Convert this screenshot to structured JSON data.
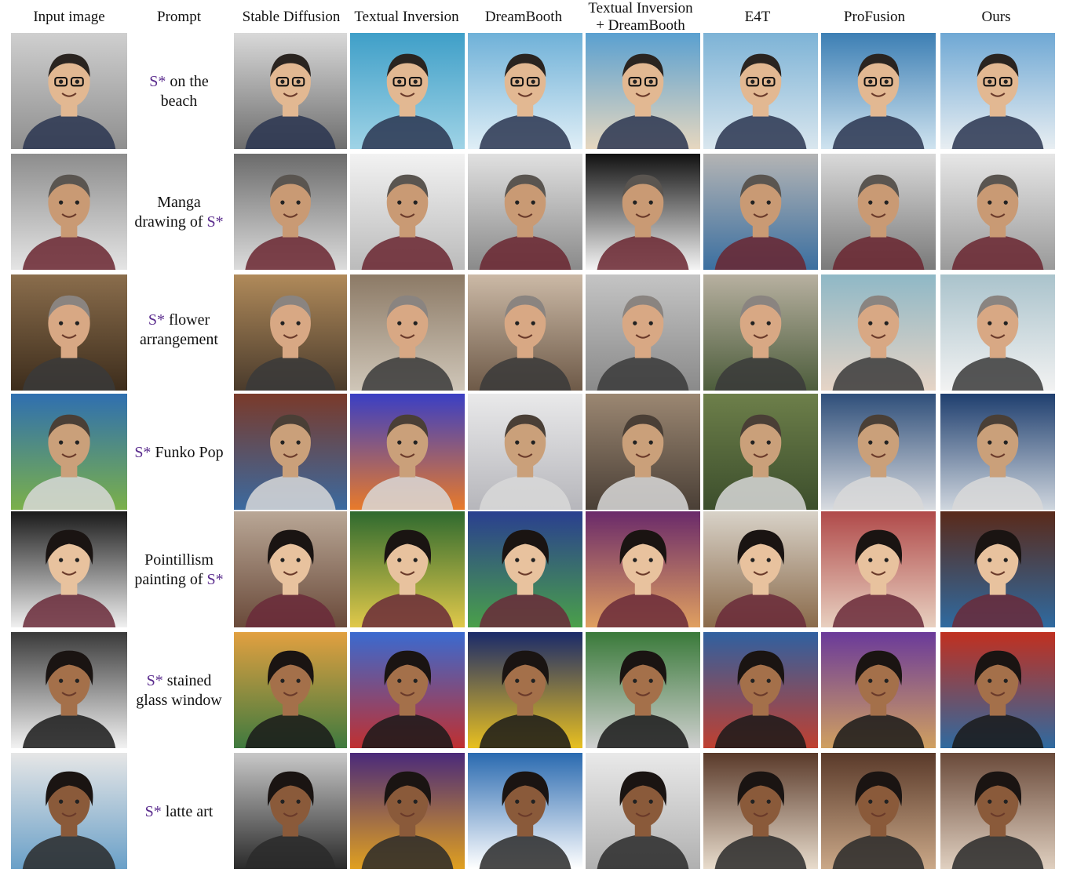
{
  "figure": {
    "columns": [
      {
        "label": "Input image"
      },
      {
        "label": "Prompt"
      },
      {
        "label": "Stable Diffusion"
      },
      {
        "label": "Textual Inversion"
      },
      {
        "label": "DreamBooth"
      },
      {
        "label_line1": "Textual Inversion",
        "label_line2": "+ DreamBooth"
      },
      {
        "label": "E4T"
      },
      {
        "label": "ProFusion"
      },
      {
        "label": "Ours"
      }
    ],
    "rows": [
      {
        "token": "S*",
        "line1_suffix": " on the",
        "line2": "beach",
        "layout": "token-first"
      },
      {
        "line1": "Manga",
        "line2_prefix": "drawing of ",
        "token": "S*",
        "layout": "token-last"
      },
      {
        "token": "S*",
        "line1_suffix": " flower",
        "line2": "arrangement",
        "layout": "token-first"
      },
      {
        "token": "S*",
        "line1_suffix": " Funko Pop",
        "layout": "single"
      },
      {
        "line1": "Pointillism",
        "line2_prefix": "painting of ",
        "token": "S*",
        "layout": "token-last"
      },
      {
        "token": "S*",
        "line1_suffix": " stained",
        "line2": "glass window",
        "layout": "token-first"
      },
      {
        "token": "S*",
        "line1_suffix": " latte art",
        "layout": "single"
      }
    ],
    "token_color": "#5b2d8e"
  }
}
